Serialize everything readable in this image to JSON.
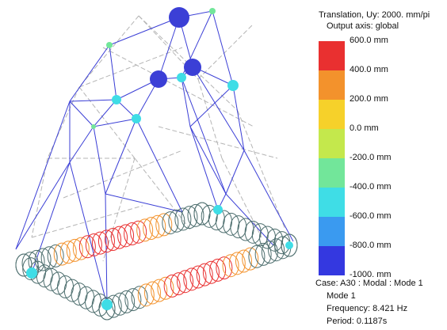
{
  "legend": {
    "title": "Translation, Uy: 2000. mm/pi",
    "output_axis": "Output axis: global",
    "colors": [
      "#e93030",
      "#f3922c",
      "#f6d12a",
      "#c4e84c",
      "#72e69a",
      "#3fdde6",
      "#3a9af0",
      "#3438e0"
    ],
    "ticks": [
      "600.0 mm",
      "400.0 mm",
      "200.0 mm",
      "0.0 mm",
      "-200.0 mm",
      "-400.0 mm",
      "-600.0 mm",
      "-800.0 mm",
      "-1000. mm"
    ]
  },
  "case_info": {
    "case": "Case: A30 : Modal : Mode 1",
    "mode": "Mode 1",
    "frequency": "Frequency: 8.421 Hz",
    "period": "Period: 0.1187s"
  },
  "model": {
    "deformed_color": "#3b3fd6",
    "undeformed_color": "#b5b5b5",
    "ring_color": "#4d6e6e"
  }
}
